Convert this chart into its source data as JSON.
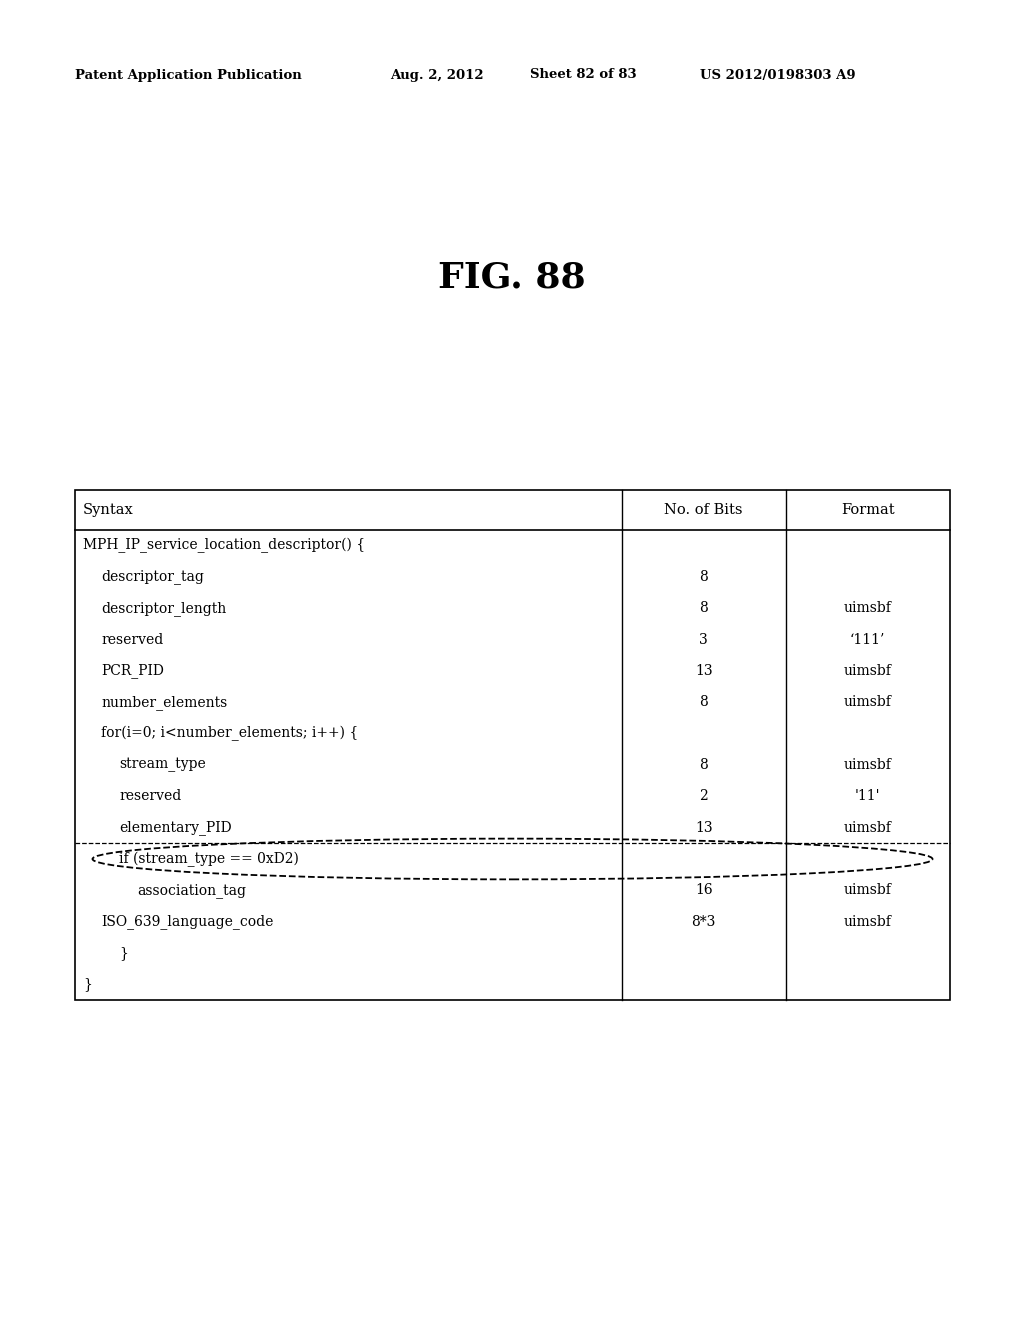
{
  "header_left": "Patent Application Publication",
  "header_date": "Aug. 2, 2012",
  "header_sheet": "Sheet 82 of 83",
  "header_right": "US 2012/0198303 A9",
  "fig_label": "FIG. 88",
  "table": {
    "col_headers": [
      "Syntax",
      "No. of Bits",
      "Format"
    ],
    "rows": [
      {
        "syntax": "MPH_IP_service_location_descriptor() {",
        "bits": "",
        "format": "",
        "indent": 0
      },
      {
        "syntax": "descriptor_tag",
        "bits": "8",
        "format": "",
        "indent": 1
      },
      {
        "syntax": "descriptor_length",
        "bits": "8",
        "format": "uimsbf",
        "indent": 1
      },
      {
        "syntax": "reserved",
        "bits": "3",
        "format": "‘111’",
        "indent": 1
      },
      {
        "syntax": "PCR_PID",
        "bits": "13",
        "format": "uimsbf",
        "indent": 1
      },
      {
        "syntax": "number_elements",
        "bits": "8",
        "format": "uimsbf",
        "indent": 1
      },
      {
        "syntax": "for(i=0; i<number_elements; i++) {",
        "bits": "",
        "format": "",
        "indent": 1
      },
      {
        "syntax": "stream_type",
        "bits": "8",
        "format": "uimsbf",
        "indent": 2
      },
      {
        "syntax": "reserved",
        "bits": "2",
        "format": "'11'",
        "indent": 2
      },
      {
        "syntax": "elementary_PID",
        "bits": "13",
        "format": "uimsbf",
        "indent": 2,
        "dashed_below": true
      },
      {
        "syntax": "if (stream_type == 0xD2)",
        "bits": "",
        "format": "",
        "indent": 2,
        "dashed_row": true
      },
      {
        "syntax": "association_tag",
        "bits": "16",
        "format": "uimsbf",
        "indent": 3,
        "dashed_row": true
      },
      {
        "syntax": "ISO_639_language_code",
        "bits": "8*3",
        "format": "uimsbf",
        "indent": 1
      },
      {
        "syntax": "}",
        "bits": "",
        "format": "",
        "indent": 2
      },
      {
        "syntax": "}",
        "bits": "",
        "format": "",
        "indent": 0
      }
    ]
  },
  "background_color": "#ffffff",
  "text_color": "#000000",
  "table_border_color": "#000000"
}
